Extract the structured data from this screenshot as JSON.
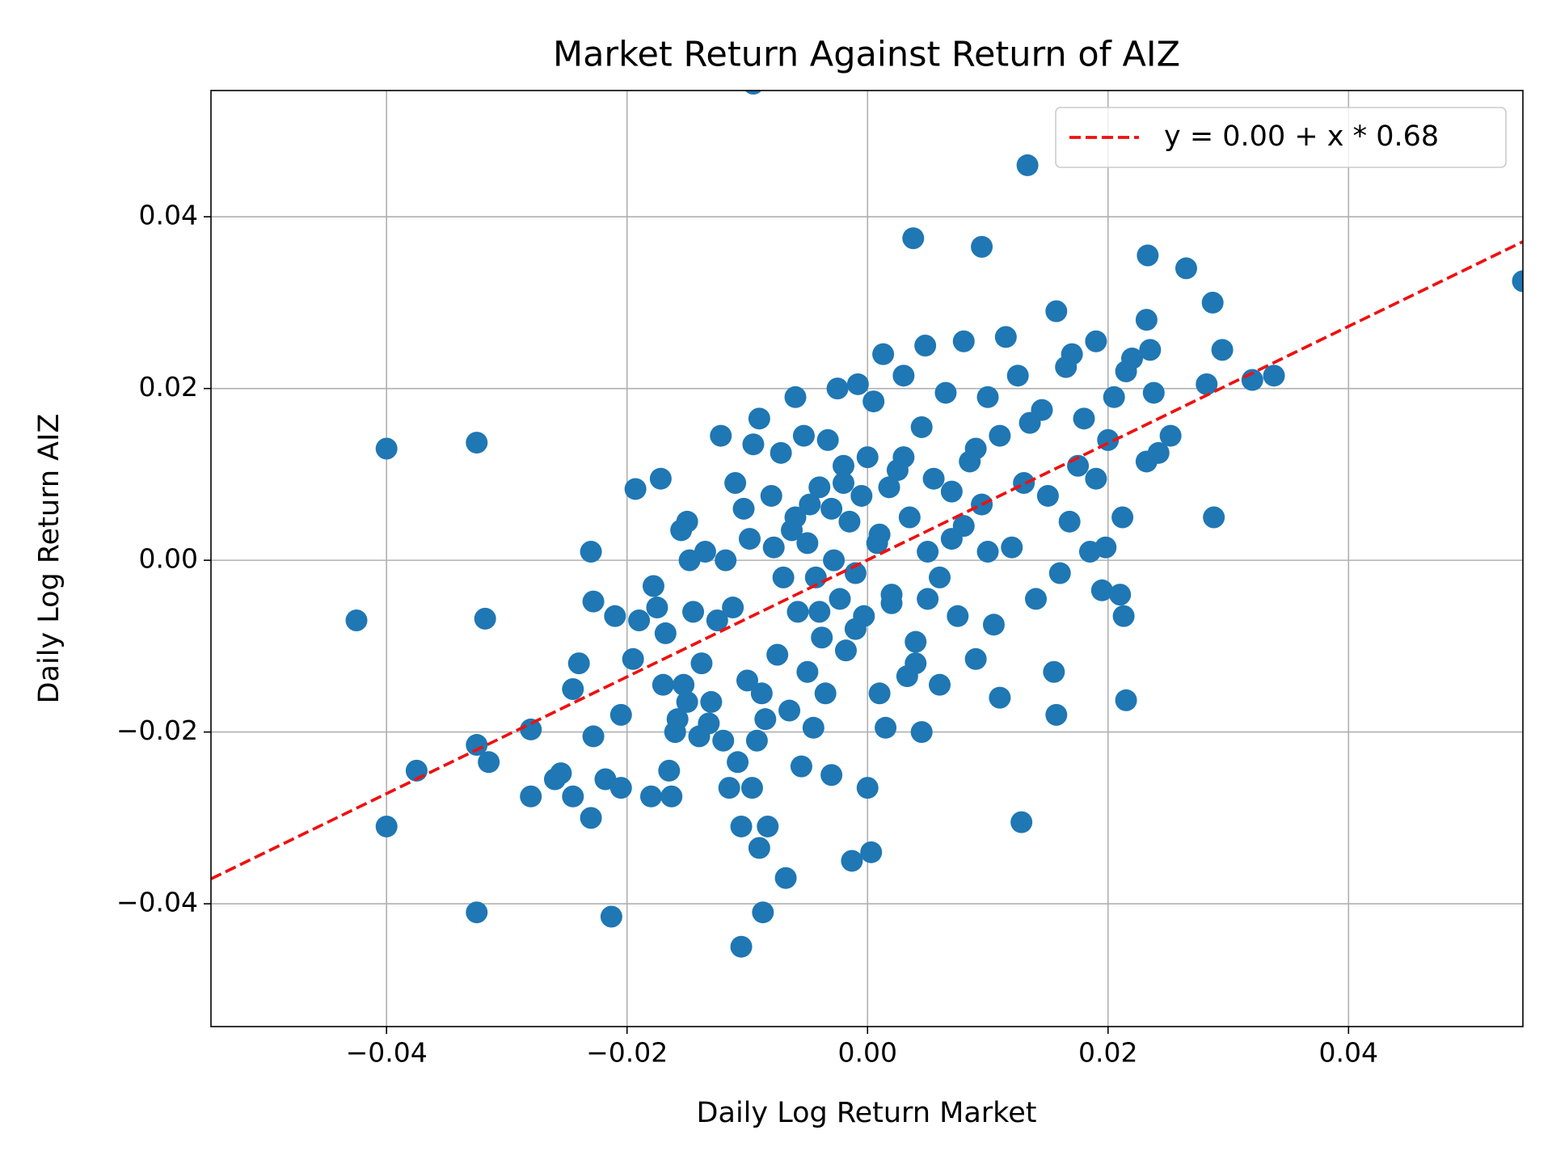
{
  "chart_data": {
    "type": "scatter",
    "title": "Market Return Against Return of AIZ",
    "x_label": "Daily Log Return Market",
    "y_label": "Daily Log Return AIZ",
    "xlim": [
      -0.0546,
      0.0545
    ],
    "ylim": [
      -0.0543,
      0.0547
    ],
    "xticks": [
      {
        "value": -0.04,
        "label": "−0.04"
      },
      {
        "value": -0.02,
        "label": "−0.02"
      },
      {
        "value": 0,
        "label": "0.00"
      },
      0.02,
      0.04
    ],
    "yticks": [
      {
        "value": -0.04,
        "label": "−0.04"
      },
      {
        "value": -0.02,
        "label": "−0.02"
      },
      {
        "value": 0,
        "label": "0.00"
      },
      0.02,
      0.04
    ],
    "grid": true,
    "legend": "upper right",
    "series": [
      {
        "type": "scatter",
        "color": "#1f77b4",
        "x": [
          -0.0425,
          -0.04,
          -0.04,
          -0.0375,
          -0.0325,
          -0.0325,
          -0.0325,
          -0.0318,
          -0.0315,
          -0.028,
          -0.028,
          -0.026,
          -0.0255,
          -0.0245,
          -0.0245,
          -0.024,
          -0.023,
          -0.023,
          -0.0228,
          -0.0228,
          -0.0218,
          -0.0213,
          -0.021,
          -0.0205,
          -0.0205,
          -0.0195,
          -0.0193,
          -0.019,
          -0.018,
          -0.0178,
          -0.0175,
          -0.0172,
          -0.017,
          -0.0168,
          -0.0165,
          -0.0163,
          -0.016,
          -0.0158,
          -0.0155,
          -0.0153,
          -0.015,
          -0.015,
          -0.0148,
          -0.0145,
          -0.014,
          -0.0138,
          -0.0135,
          -0.0132,
          -0.013,
          -0.0125,
          -0.0122,
          -0.012,
          -0.0118,
          -0.0115,
          -0.0112,
          -0.011,
          -0.0108,
          -0.0105,
          -0.0105,
          -0.0103,
          -0.01,
          -0.0098,
          -0.0096,
          -0.0095,
          -0.0092,
          -0.009,
          -0.009,
          -0.0088,
          -0.0087,
          -0.0085,
          -0.0083,
          -0.008,
          -0.0078,
          -0.0075,
          -0.0072,
          -0.0068,
          -0.0065,
          -0.0063,
          -0.006,
          -0.0058,
          -0.0055,
          -0.0053,
          -0.005,
          -0.0048,
          -0.0045,
          -0.0043,
          -0.004,
          -0.0038,
          -0.0035,
          -0.0033,
          -0.003,
          -0.0028,
          -0.0025,
          -0.0023,
          -0.002,
          -0.0018,
          -0.0015,
          -0.0013,
          -0.001,
          -0.0008,
          -0.0005,
          -0.0003,
          0,
          0,
          0.0003,
          0.0005,
          0.0008,
          0.001,
          0.0013,
          0.0015,
          0.0018,
          0.002,
          0.0025,
          0.003,
          0.0033,
          0.0035,
          0.004,
          0.0038,
          0.0045,
          0.0048,
          0.005,
          0.0045,
          0.0055,
          0.006,
          0.0065,
          0.007,
          0.0075,
          0.008,
          0.0085,
          0.009,
          0.0095,
          0.0095,
          0.01,
          0.0105,
          0.011,
          0.011,
          0.0115,
          0.012,
          0.0125,
          0.0128,
          0.013,
          0.0133,
          0.0135,
          0.014,
          0.0145,
          0.015,
          0.0155,
          0.0157,
          0.0157,
          0.016,
          0.0165,
          0.0168,
          0.017,
          0.0175,
          0.018,
          0.0185,
          0.019,
          0.019,
          0.0195,
          0.0198,
          0.02,
          0.0205,
          0.021,
          0.0212,
          0.0213,
          0.0215,
          0.0215,
          0.022,
          0.0232,
          0.0233,
          0.0232,
          0.0235,
          0.0238,
          0.0242,
          0.0252,
          0.0265,
          0.0282,
          0.0287,
          0.0288,
          0.0295,
          0.032,
          0.0338,
          0.0545,
          -0.0095,
          -0.006,
          -0.004,
          -0.002,
          -0.001,
          0.001,
          0.002,
          0.003,
          0.005,
          0.006,
          0.007,
          0.008,
          -0.007,
          -0.005,
          -0.003,
          0.004,
          0.009,
          0.01
        ],
        "values": [
          -0.007,
          0.013,
          -0.031,
          -0.0245,
          0.0137,
          -0.0215,
          -0.041,
          -0.0068,
          -0.0235,
          -0.0197,
          -0.0275,
          -0.0255,
          -0.0248,
          -0.0275,
          -0.015,
          -0.012,
          0.001,
          -0.03,
          -0.0048,
          -0.0205,
          -0.0255,
          -0.0415,
          -0.0065,
          -0.018,
          -0.0265,
          -0.0115,
          0.0083,
          -0.007,
          -0.0275,
          -0.003,
          -0.0055,
          0.0095,
          -0.0145,
          -0.0085,
          -0.0245,
          -0.0275,
          -0.02,
          -0.0185,
          0.0035,
          -0.0145,
          0.0045,
          -0.0165,
          0,
          -0.006,
          -0.0205,
          -0.012,
          0.001,
          -0.019,
          -0.0165,
          -0.007,
          0.0145,
          -0.021,
          0,
          -0.0265,
          -0.0055,
          0.009,
          -0.0235,
          -0.031,
          -0.045,
          0.006,
          -0.014,
          0.0025,
          -0.0265,
          0.0135,
          -0.021,
          0.0165,
          -0.0335,
          -0.0155,
          -0.041,
          -0.0185,
          -0.031,
          0.0075,
          0.0015,
          -0.011,
          0.0125,
          -0.037,
          -0.0175,
          0.0035,
          0.019,
          -0.006,
          -0.024,
          0.0145,
          -0.013,
          0.0065,
          -0.0195,
          -0.002,
          0.0085,
          -0.009,
          -0.0155,
          0.014,
          -0.025,
          0,
          0.02,
          -0.0045,
          0.011,
          -0.0105,
          0.0045,
          -0.035,
          -0.0015,
          0.0205,
          0.0075,
          -0.0065,
          -0.0265,
          0.012,
          -0.034,
          0.0185,
          0.002,
          -0.0155,
          0.024,
          -0.0195,
          0.0085,
          -0.004,
          0.0105,
          0.0215,
          -0.0135,
          0.005,
          -0.0095,
          0.0375,
          0.0155,
          0.025,
          -0.0045,
          -0.02,
          0.0095,
          -0.0145,
          0.0195,
          0.0025,
          -0.0065,
          0.0255,
          0.0115,
          -0.0115,
          0.0365,
          0.0065,
          0.019,
          -0.0075,
          0.0145,
          -0.016,
          0.026,
          0.0015,
          0.0215,
          -0.0305,
          0.009,
          0.046,
          0.016,
          -0.0045,
          0.0175,
          0.0075,
          -0.013,
          0.029,
          -0.018,
          -0.0015,
          0.0225,
          0.0045,
          0.024,
          0.011,
          0.0165,
          0.001,
          0.0255,
          0.0095,
          -0.0035,
          0.0015,
          0.014,
          0.019,
          -0.004,
          0.005,
          -0.0065,
          -0.0163,
          0.022,
          0.0235,
          0.028,
          0.0355,
          0.0115,
          0.0245,
          0.0195,
          0.0125,
          0.0145,
          0.034,
          0.0205,
          0.03,
          0.005,
          0.0245,
          0.021,
          0.0215,
          0.0325,
          0.0555,
          0.005,
          -0.006,
          0.009,
          -0.008,
          0.003,
          -0.005,
          0.012,
          0.001,
          -0.002,
          0.008,
          0.004,
          -0.002,
          0.002,
          0.006,
          -0.012,
          0.013,
          0.001
        ]
      },
      {
        "type": "line",
        "name": "y = 0.00 + x * 0.68",
        "color": "#ee1111",
        "dashed": true,
        "x": [
          -0.0546,
          0.0545
        ],
        "values": [
          -0.0371,
          0.0371
        ]
      }
    ]
  }
}
